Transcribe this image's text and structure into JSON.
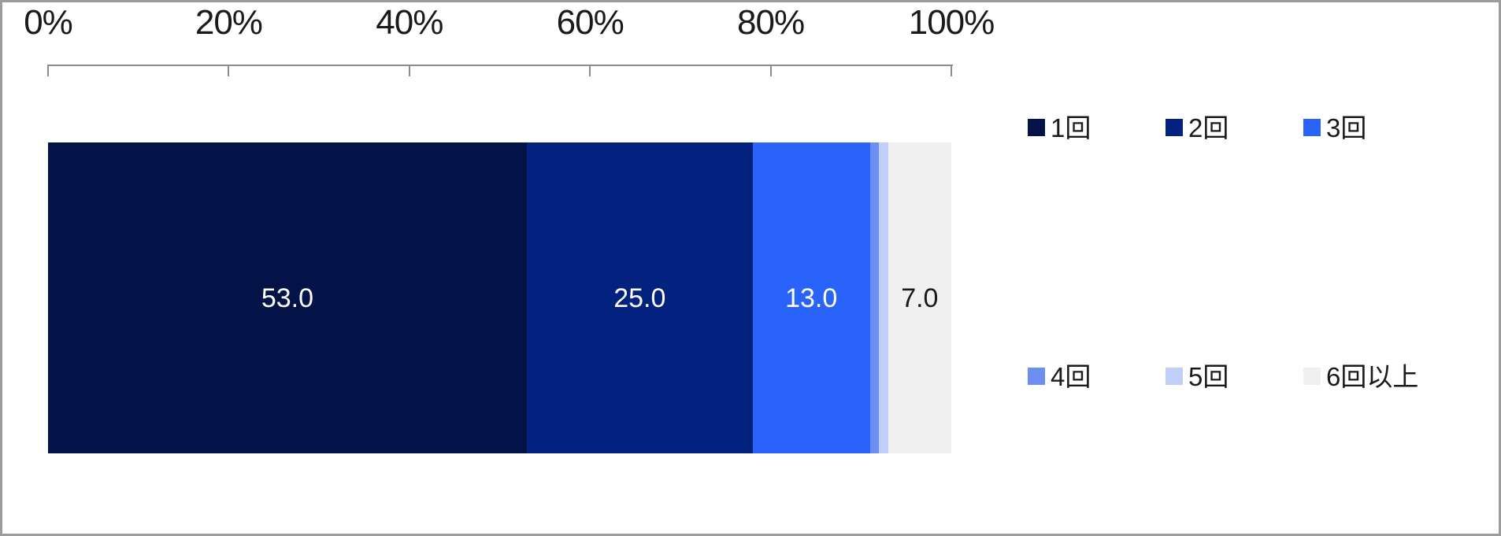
{
  "chart_data": {
    "type": "bar",
    "subtype": "horizontal-stacked-single-bar",
    "title": "",
    "unit": "%",
    "total": 100.0,
    "x_axis": {
      "position": "top",
      "range": [
        0,
        100
      ],
      "tick_labels": [
        "0%",
        "20%",
        "40%",
        "60%",
        "80%",
        "100%"
      ],
      "grid": false
    },
    "segments": [
      {
        "label": "1回",
        "value": 53.0,
        "color": "#031247",
        "text_color": "#ffffff",
        "show_value": true
      },
      {
        "label": "2回",
        "value": 25.0,
        "color": "#03217e",
        "text_color": "#ffffff",
        "show_value": true
      },
      {
        "label": "3回",
        "value": 13.0,
        "color": "#2a63fa",
        "text_color": "#ffffff",
        "show_value": true
      },
      {
        "label": "4回",
        "value": 1.0,
        "color": "#6e8ff2",
        "text_color": "#ffffff",
        "show_value": false
      },
      {
        "label": "5回",
        "value": 1.0,
        "color": "#bfcff7",
        "text_color": "#333333",
        "show_value": false
      },
      {
        "label": "6回以上",
        "value": 7.0,
        "color": "#f0f0f0",
        "text_color": "#1a1a1a",
        "show_value": true
      }
    ],
    "value_decimals": 1,
    "legend": {
      "position": "right",
      "rows": [
        [
          0,
          1,
          2
        ],
        [
          3,
          4,
          5
        ]
      ]
    }
  },
  "colors": {
    "background": "#ffffff",
    "canvas_border": "#9c9c9c",
    "axis_line": "#8c8c8c",
    "axis_text": "#1a1a1a",
    "legend_text": "#1a1a1a"
  }
}
